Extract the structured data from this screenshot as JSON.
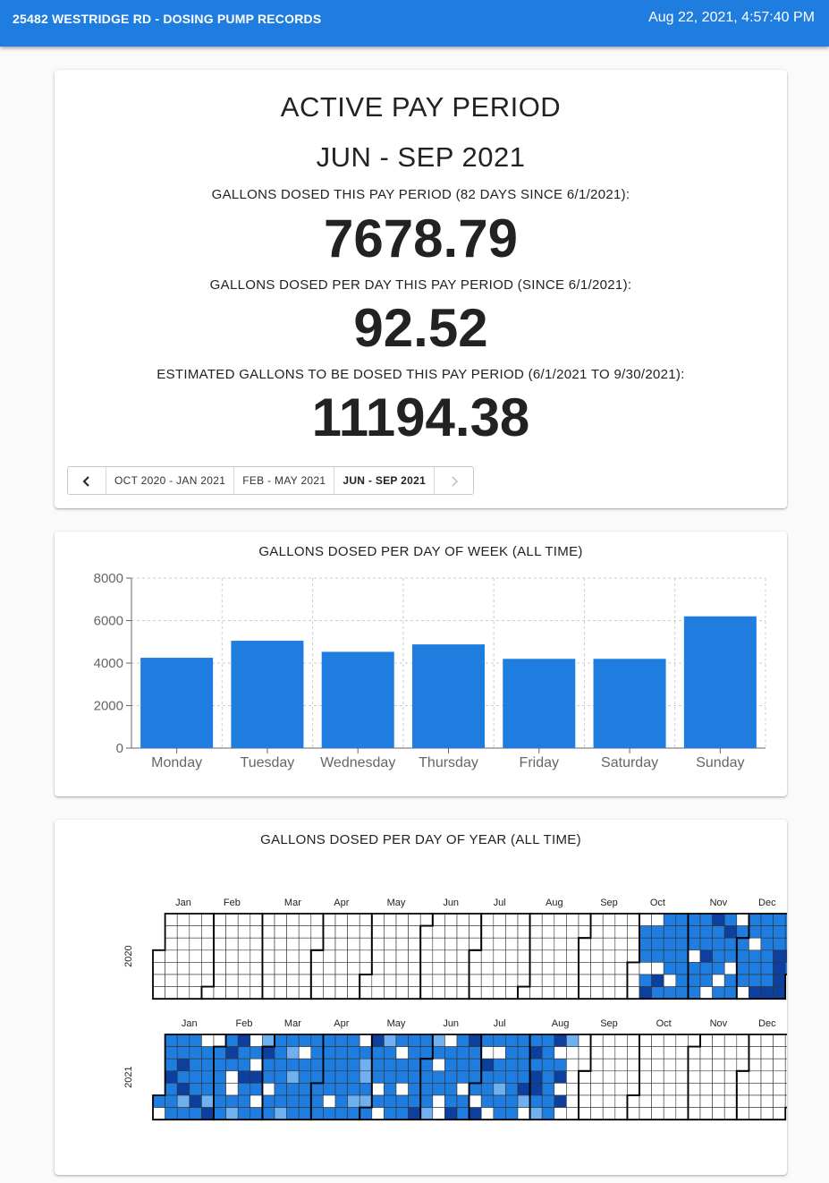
{
  "header": {
    "title": "25482 WESTRIDGE RD - DOSING PUMP RECORDS",
    "datetime": "Aug 22, 2021, 4:57:40 PM"
  },
  "period": {
    "heading": "ACTIVE PAY PERIOD",
    "name": "JUN - SEP 2021",
    "dosed_label": "GALLONS DOSED THIS PAY PERIOD (82 DAYS SINCE 6/1/2021):",
    "dosed_value": "7678.79",
    "per_day_label": "GALLONS DOSED PER DAY THIS PAY PERIOD (SINCE 6/1/2021):",
    "per_day_value": "92.52",
    "estimate_label": "ESTIMATED GALLONS TO BE DOSED THIS PAY PERIOD (6/1/2021 TO 9/30/2021):",
    "estimate_value": "11194.38"
  },
  "pager": {
    "prev_icon": "chevron-left-icon",
    "next_icon": "chevron-right-icon",
    "items": [
      "OCT 2020 - JAN 2021",
      "FEB - MAY 2021",
      "JUN - SEP 2021"
    ],
    "active_index": 2
  },
  "colors": {
    "accent": "#1e7ddf",
    "bar": "#1e7ddf",
    "cal_dark": "#0d3f9e",
    "cal_mid": "#1e7ddf",
    "cal_light": "#6fb0f0"
  },
  "chart_data": [
    {
      "type": "bar",
      "title": "GALLONS DOSED PER DAY OF WEEK (ALL TIME)",
      "categories": [
        "Monday",
        "Tuesday",
        "Wednesday",
        "Thursday",
        "Friday",
        "Saturday",
        "Sunday"
      ],
      "values": [
        4250,
        5050,
        4530,
        4880,
        4200,
        4200,
        6200
      ],
      "ylim": [
        0,
        8000
      ],
      "yticks": [
        0,
        2000,
        4000,
        6000,
        8000
      ],
      "grid": true
    },
    {
      "type": "heatmap",
      "title": "GALLONS DOSED PER DAY OF YEAR (ALL TIME)",
      "years": [
        "2020",
        "2021"
      ],
      "months": [
        "Jan",
        "Feb",
        "Mar",
        "Apr",
        "May",
        "Jun",
        "Jul",
        "Aug",
        "Sep",
        "Oct",
        "Nov",
        "Dec"
      ],
      "data_ranges": [
        {
          "year": "2020",
          "from": "2020-10-05",
          "to": "2020-12-31"
        },
        {
          "year": "2021",
          "from": "2021-01-01",
          "to": "2021-08-22"
        }
      ]
    }
  ]
}
